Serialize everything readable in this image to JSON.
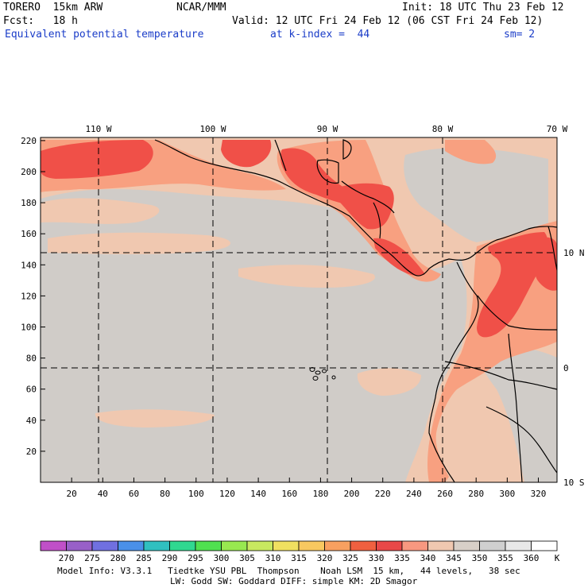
{
  "header": {
    "model": "TORERO  15km ARW",
    "org": "NCAR/MMM",
    "init": "Init: 18 UTC Thu 23 Feb 12",
    "fcst": "Fcst:   18 h",
    "valid": "Valid: 12 UTC Fri 24 Feb 12 (06 CST Fri 24 Feb 12)",
    "field": "Equivalent potential temperature",
    "level": "at k-index =  44",
    "smooth": "sm= 2"
  },
  "axes": {
    "lon_labels": [
      "110 W",
      "100 W",
      "90 W",
      "80 W",
      "70 W"
    ],
    "lat_labels": [
      "10 N",
      "0",
      "10 S"
    ],
    "x_ticks": [
      "20",
      "40",
      "60",
      "80",
      "100",
      "120",
      "140",
      "160",
      "180",
      "200",
      "220",
      "240",
      "260",
      "280",
      "300",
      "320"
    ],
    "y_ticks": [
      "220",
      "200",
      "180",
      "160",
      "140",
      "120",
      "100",
      "80",
      "60",
      "40",
      "20"
    ]
  },
  "legend": {
    "values": [
      "270",
      "275",
      "280",
      "285",
      "290",
      "295",
      "300",
      "305",
      "310",
      "315",
      "320",
      "325",
      "330",
      "335",
      "340",
      "345",
      "350",
      "355",
      "360"
    ],
    "unit": "K",
    "colors": [
      "#c050c8",
      "#9860c8",
      "#7070e0",
      "#4a90e8",
      "#30c0c0",
      "#30d890",
      "#50e050",
      "#98e850",
      "#c8e860",
      "#f0e060",
      "#f8c860",
      "#f8a060",
      "#f06040",
      "#e84848",
      "#f89880",
      "#f0c8b0",
      "#d8d0c8",
      "#d0d0d0",
      "#e8e8e8",
      "#ffffff"
    ]
  },
  "footer": {
    "line1": "Model Info: V3.3.1   Tiedtke YSU PBL  Thompson    Noah LSM  15 km,   44 levels,   38 sec",
    "line2": "LW: Godd SW: Goddard DIFF: simple KM: 2D Smagor"
  },
  "map_colors": {
    "background": "#f0c8b0",
    "gray": "#d0ccc8",
    "pink": "#f8a080",
    "red": "#f05048"
  }
}
